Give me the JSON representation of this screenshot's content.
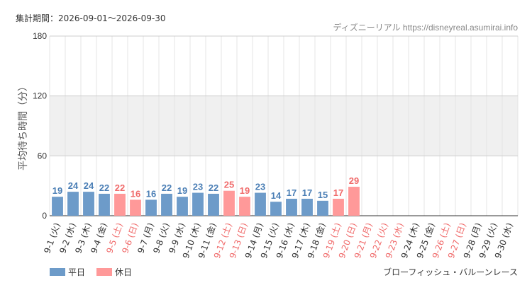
{
  "header": {
    "period": "集計期間：2026-09-01～2026-09-30",
    "source": "ディズニーリアル https://disneyreal.asumirai.info"
  },
  "footer": {
    "attraction": "ブローフィッシュ・バルーンレース"
  },
  "colors": {
    "weekday": "#6d9bc9",
    "holiday": "#ff9999",
    "weekday_text": "#4a7eb5",
    "holiday_text": "#f06a6a",
    "band": "#f0f0f0",
    "grid": "#e4e4e4"
  },
  "chart_data": {
    "type": "bar",
    "title": "",
    "xlabel": "",
    "ylabel": "平均待ち時間（分）",
    "ylim": [
      0,
      180
    ],
    "yticks": [
      0,
      60,
      120,
      180
    ],
    "grid": true,
    "legend_position": "bottom-left",
    "legend": [
      {
        "label": "平日",
        "key": "weekday"
      },
      {
        "label": "休日",
        "key": "holiday"
      }
    ],
    "categories": [
      "9-1 (火)",
      "9-2 (水)",
      "9-3 (木)",
      "9-4 (金)",
      "9-5 (土)",
      "9-6 (日)",
      "9-7 (月)",
      "9-8 (火)",
      "9-9 (水)",
      "9-10 (木)",
      "9-11 (金)",
      "9-12 (土)",
      "9-13 (日)",
      "9-14 (月)",
      "9-15 (火)",
      "9-16 (水)",
      "9-17 (木)",
      "9-18 (金)",
      "9-19 (土)",
      "9-20 (日)",
      "9-21 (月)",
      "9-22 (火)",
      "9-23 (水)",
      "9-24 (木)",
      "9-25 (金)",
      "9-26 (土)",
      "9-27 (日)",
      "9-28 (月)",
      "9-29 (火)",
      "9-30 (水)"
    ],
    "values": [
      19,
      24,
      24,
      22,
      22,
      16,
      16,
      22,
      19,
      23,
      22,
      25,
      19,
      23,
      14,
      17,
      17,
      15,
      17,
      29,
      null,
      null,
      null,
      null,
      null,
      null,
      null,
      null,
      null,
      null
    ],
    "holiday": [
      false,
      false,
      false,
      false,
      true,
      true,
      false,
      false,
      false,
      false,
      false,
      true,
      true,
      false,
      false,
      false,
      false,
      false,
      true,
      true,
      true,
      true,
      true,
      false,
      false,
      true,
      true,
      false,
      false,
      false
    ]
  }
}
